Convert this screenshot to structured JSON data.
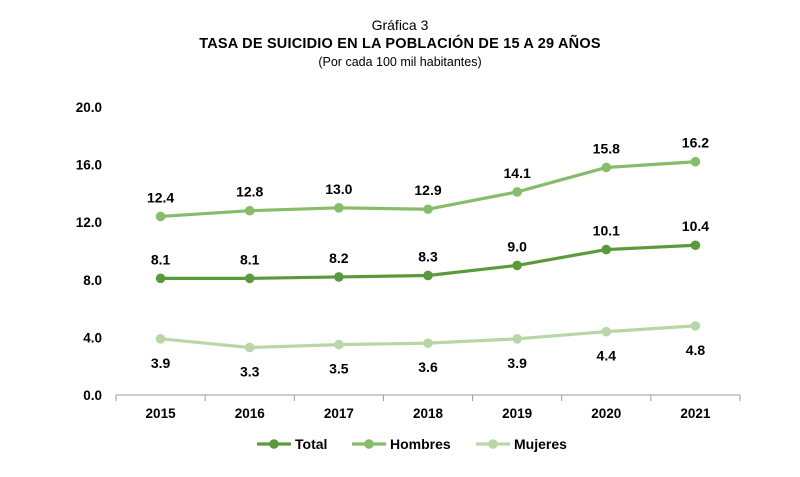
{
  "header": {
    "supertitle": "Gráfica 3",
    "title": "TASA DE SUICIDIO EN LA POBLACIÓN DE 15 A 29 AÑOS",
    "subtitle": "(Por cada 100 mil habitantes)"
  },
  "chart_data": {
    "type": "line",
    "x": [
      "2015",
      "2016",
      "2017",
      "2018",
      "2019",
      "2020",
      "2021"
    ],
    "ylim": [
      0,
      20
    ],
    "yticks": [
      "0.0",
      "4.0",
      "8.0",
      "12.0",
      "16.0",
      "20.0"
    ],
    "grid": false,
    "legend_position": "bottom",
    "series": [
      {
        "name": "Total",
        "color": "#5a9a3c",
        "values": [
          8.1,
          8.1,
          8.2,
          8.3,
          9.0,
          10.1,
          10.4
        ],
        "labels": [
          "8.1",
          "8.1",
          "8.2",
          "8.3",
          "9.0",
          "10.1",
          "10.4"
        ],
        "label_side": "above"
      },
      {
        "name": "Hombres",
        "color": "#86bc6a",
        "values": [
          12.4,
          12.8,
          13.0,
          12.9,
          14.1,
          15.8,
          16.2
        ],
        "labels": [
          "12.4",
          "12.8",
          "13.0",
          "12.9",
          "14.1",
          "15.8",
          "16.2"
        ],
        "label_side": "above"
      },
      {
        "name": "Mujeres",
        "color": "#b9d7a6",
        "values": [
          3.9,
          3.3,
          3.5,
          3.6,
          3.9,
          4.4,
          4.8
        ],
        "labels": [
          "3.9",
          "3.3",
          "3.5",
          "3.6",
          "3.9",
          "4.4",
          "4.8"
        ],
        "label_side": "below"
      }
    ]
  }
}
